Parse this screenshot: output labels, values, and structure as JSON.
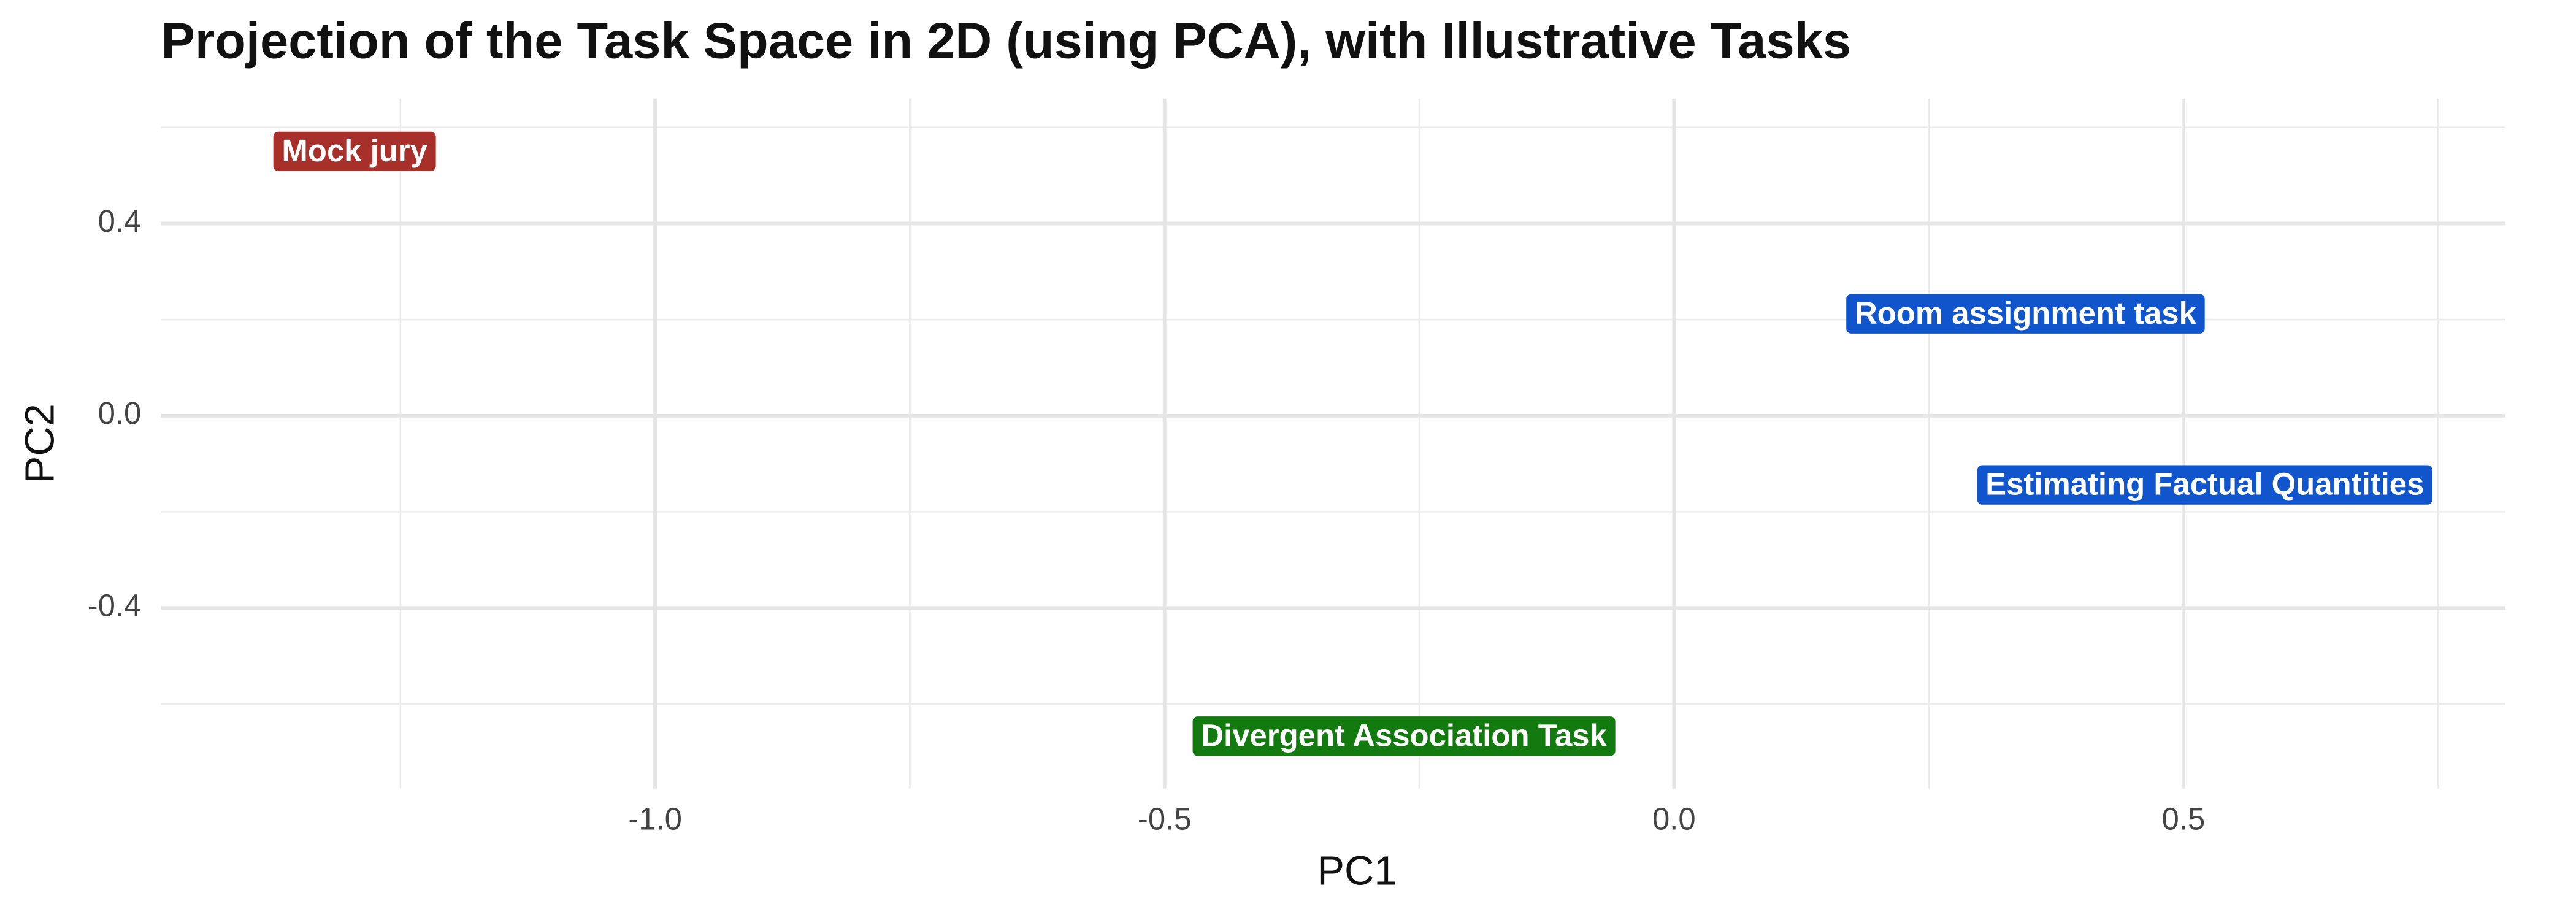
{
  "chart_data": {
    "type": "scatter",
    "title": "Projection of the Task Space in 2D (using PCA), with Illustrative Tasks",
    "x_label": "PC1",
    "y_label": "PC2",
    "labels": [
      "Mock jury",
      "Room assignment task",
      "Estimating Factual Quantities",
      "Divergent Association Task"
    ],
    "x": [
      -1.295,
      0.345,
      0.521,
      -0.265
    ],
    "values": [
      0.55,
      0.212,
      -0.144,
      -0.667
    ],
    "colors": [
      "#a8302a",
      "#1155cc",
      "#1155cc",
      "#137a0f"
    ],
    "xlim": [
      -1.485,
      0.816
    ],
    "ylim": [
      -0.776,
      0.66
    ],
    "xticks": [
      {
        "value": -1,
        "label": "-1.0"
      },
      -0.5,
      {
        "value": 0,
        "label": "0.0"
      },
      0.5
    ],
    "yticks": [
      -0.4,
      {
        "value": 0,
        "label": "0.0"
      },
      0.4
    ],
    "xminor": [
      -1.25,
      -0.75,
      -0.25,
      0.25,
      0.75
    ],
    "yminor": [
      -0.6,
      -0.2,
      0.2,
      0.6
    ],
    "grid": true
  }
}
